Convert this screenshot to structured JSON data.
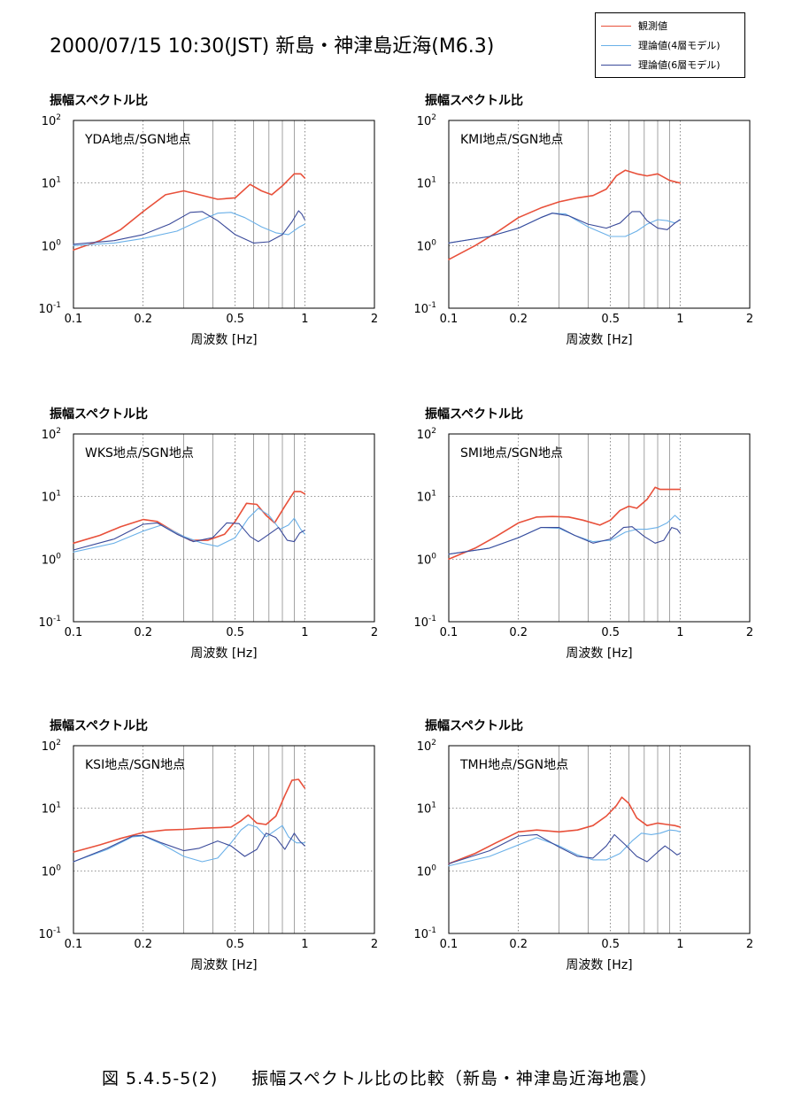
{
  "title": "2000/07/15  10:30(JST)  新島・神津島近海(M6.3)",
  "legend": [
    {
      "label": "観測値",
      "color": "#e8503a"
    },
    {
      "label": "理論値(4層モデル)",
      "color": "#6ab0e8"
    },
    {
      "label": "理論値(6層モデル)",
      "color": "#3a4a9a"
    }
  ],
  "caption": {
    "figure_no": "図 5.4.5-5(2)",
    "text": "振幅スペクトル比の比較（新島・神津島近海地震）"
  },
  "chart_data": [
    {
      "type": "line",
      "title": "振幅スペクトル比",
      "annotation": "YDA地点/SGN地点",
      "xlabel": "周波数 [Hz]",
      "xscale": "log",
      "yscale": "log",
      "xlim": [
        0.1,
        2
      ],
      "ylim": [
        0.1,
        100
      ],
      "xticks": [
        "0.1",
        "0.2",
        "0.5",
        "1",
        "2"
      ],
      "yticks": [
        "10-1",
        "100",
        "101",
        "102"
      ],
      "series": [
        {
          "name": "観測値",
          "x": [
            0.1,
            0.13,
            0.16,
            0.2,
            0.25,
            0.3,
            0.35,
            0.42,
            0.5,
            0.58,
            0.65,
            0.72,
            0.8,
            0.9,
            0.96,
            1.0
          ],
          "y": [
            0.85,
            1.2,
            1.8,
            3.5,
            6.5,
            7.5,
            6.5,
            5.5,
            5.8,
            9.5,
            7.5,
            6.5,
            9.0,
            14,
            14,
            12
          ]
        },
        {
          "name": "理論値(4層モデル)",
          "x": [
            0.1,
            0.15,
            0.2,
            0.28,
            0.35,
            0.42,
            0.48,
            0.55,
            0.65,
            0.75,
            0.85,
            0.95,
            1.0
          ],
          "y": [
            1.0,
            1.1,
            1.3,
            1.7,
            2.5,
            3.3,
            3.4,
            2.8,
            2.0,
            1.6,
            1.5,
            2.0,
            2.2
          ]
        },
        {
          "name": "理論値(6層モデル)",
          "x": [
            0.1,
            0.15,
            0.2,
            0.26,
            0.32,
            0.36,
            0.42,
            0.5,
            0.6,
            0.7,
            0.8,
            0.88,
            0.94,
            0.97,
            1.0
          ],
          "y": [
            1.05,
            1.2,
            1.5,
            2.2,
            3.4,
            3.5,
            2.5,
            1.5,
            1.1,
            1.15,
            1.5,
            2.4,
            3.6,
            3.2,
            2.6
          ]
        }
      ]
    },
    {
      "type": "line",
      "title": "振幅スペクトル比",
      "annotation": "KMI地点/SGN地点",
      "xlabel": "周波数 [Hz]",
      "xscale": "log",
      "yscale": "log",
      "xlim": [
        0.1,
        2
      ],
      "ylim": [
        0.1,
        100
      ],
      "xticks": [
        "0.1",
        "0.2",
        "0.5",
        "1",
        "2"
      ],
      "yticks": [
        "10-1",
        "100",
        "101",
        "102"
      ],
      "series": [
        {
          "name": "観測値",
          "x": [
            0.1,
            0.13,
            0.16,
            0.2,
            0.25,
            0.3,
            0.36,
            0.42,
            0.48,
            0.53,
            0.58,
            0.65,
            0.72,
            0.8,
            0.9,
            1.0
          ],
          "y": [
            0.6,
            1.0,
            1.6,
            2.8,
            4.0,
            5.0,
            5.8,
            6.3,
            8.0,
            13,
            16,
            14,
            13,
            14,
            11,
            10
          ]
        },
        {
          "name": "理論値(4層モデル)",
          "x": [
            0.1,
            0.15,
            0.2,
            0.25,
            0.28,
            0.32,
            0.4,
            0.5,
            0.58,
            0.65,
            0.72,
            0.8,
            0.88,
            0.95,
            1.0
          ],
          "y": [
            1.1,
            1.4,
            1.9,
            2.8,
            3.3,
            3.2,
            2.0,
            1.4,
            1.4,
            1.7,
            2.2,
            2.6,
            2.5,
            2.3,
            2.6
          ]
        },
        {
          "name": "理論値(6層モデル)",
          "x": [
            0.1,
            0.15,
            0.2,
            0.25,
            0.28,
            0.33,
            0.4,
            0.48,
            0.55,
            0.62,
            0.67,
            0.72,
            0.8,
            0.88,
            0.95,
            1.0
          ],
          "y": [
            1.1,
            1.4,
            1.9,
            2.8,
            3.3,
            3.0,
            2.2,
            1.9,
            2.3,
            3.5,
            3.5,
            2.5,
            1.9,
            1.8,
            2.3,
            2.6
          ]
        }
      ]
    },
    {
      "type": "line",
      "title": "振幅スペクトル比",
      "annotation": "WKS地点/SGN地点",
      "xlabel": "周波数 [Hz]",
      "xscale": "log",
      "yscale": "log",
      "xlim": [
        0.1,
        2
      ],
      "ylim": [
        0.1,
        100
      ],
      "xticks": [
        "0.1",
        "0.2",
        "0.5",
        "1",
        "2"
      ],
      "yticks": [
        "10-1",
        "100",
        "101",
        "102"
      ],
      "series": [
        {
          "name": "観測値",
          "x": [
            0.1,
            0.13,
            0.16,
            0.2,
            0.23,
            0.27,
            0.32,
            0.38,
            0.45,
            0.5,
            0.56,
            0.62,
            0.68,
            0.74,
            0.82,
            0.9,
            0.96,
            1.0
          ],
          "y": [
            1.8,
            2.4,
            3.3,
            4.3,
            4.0,
            2.8,
            2.0,
            2.0,
            2.5,
            4.0,
            7.8,
            7.5,
            5.0,
            3.8,
            7.0,
            12,
            12,
            11
          ]
        },
        {
          "name": "理論値(4層モデル)",
          "x": [
            0.1,
            0.15,
            0.2,
            0.24,
            0.3,
            0.36,
            0.42,
            0.5,
            0.57,
            0.63,
            0.7,
            0.78,
            0.85,
            0.9,
            0.96,
            1.0
          ],
          "y": [
            1.3,
            1.8,
            2.8,
            3.5,
            2.3,
            1.8,
            1.6,
            2.2,
            4.5,
            6.5,
            5.0,
            3.0,
            3.5,
            4.5,
            3.0,
            2.5
          ]
        },
        {
          "name": "理論値(6層モデル)",
          "x": [
            0.1,
            0.15,
            0.2,
            0.23,
            0.28,
            0.33,
            0.4,
            0.46,
            0.52,
            0.58,
            0.63,
            0.7,
            0.77,
            0.84,
            0.9,
            0.95,
            1.0
          ],
          "y": [
            1.4,
            2.1,
            3.6,
            3.8,
            2.5,
            1.9,
            2.2,
            3.8,
            3.7,
            2.3,
            1.9,
            2.5,
            3.2,
            2.0,
            1.9,
            2.6,
            2.9
          ]
        }
      ]
    },
    {
      "type": "line",
      "title": "振幅スペクトル比",
      "annotation": "SMI地点/SGN地点",
      "xlabel": "周波数 [Hz]",
      "xscale": "log",
      "yscale": "log",
      "xlim": [
        0.1,
        2
      ],
      "ylim": [
        0.1,
        100
      ],
      "xticks": [
        "0.1",
        "0.2",
        "0.5",
        "1",
        "2"
      ],
      "yticks": [
        "10-1",
        "100",
        "101",
        "102"
      ],
      "series": [
        {
          "name": "観測値",
          "x": [
            0.1,
            0.13,
            0.16,
            0.2,
            0.24,
            0.28,
            0.33,
            0.38,
            0.45,
            0.5,
            0.55,
            0.6,
            0.65,
            0.72,
            0.78,
            0.82,
            0.88,
            0.94,
            1.0
          ],
          "y": [
            1.0,
            1.5,
            2.3,
            3.8,
            4.7,
            4.8,
            4.7,
            4.2,
            3.5,
            4.2,
            6.0,
            7.0,
            6.5,
            9.0,
            14,
            13,
            13,
            13,
            13
          ]
        },
        {
          "name": "理論値(4層モデル)",
          "x": [
            0.1,
            0.15,
            0.2,
            0.25,
            0.3,
            0.35,
            0.42,
            0.5,
            0.58,
            0.65,
            0.72,
            0.8,
            0.88,
            0.95,
            1.0
          ],
          "y": [
            1.2,
            1.5,
            2.2,
            3.2,
            3.1,
            2.4,
            1.9,
            2.0,
            2.7,
            3.0,
            3.0,
            3.2,
            3.8,
            5.0,
            4.2
          ]
        },
        {
          "name": "理論値(6層モデル)",
          "x": [
            0.1,
            0.15,
            0.2,
            0.25,
            0.3,
            0.35,
            0.42,
            0.5,
            0.57,
            0.62,
            0.7,
            0.78,
            0.85,
            0.92,
            0.97,
            1.0
          ],
          "y": [
            1.2,
            1.5,
            2.2,
            3.2,
            3.2,
            2.4,
            1.8,
            2.1,
            3.2,
            3.3,
            2.3,
            1.8,
            2.0,
            3.2,
            3.0,
            2.6
          ]
        }
      ]
    },
    {
      "type": "line",
      "title": "振幅スペクトル比",
      "annotation": "KSI地点/SGN地点",
      "xlabel": "周波数 [Hz]",
      "xscale": "log",
      "yscale": "log",
      "xlim": [
        0.1,
        2
      ],
      "ylim": [
        0.1,
        100
      ],
      "xticks": [
        "0.1",
        "0.2",
        "0.5",
        "1",
        "2"
      ],
      "yticks": [
        "10-1",
        "100",
        "101",
        "102"
      ],
      "series": [
        {
          "name": "観測値",
          "x": [
            0.1,
            0.13,
            0.16,
            0.2,
            0.25,
            0.3,
            0.36,
            0.42,
            0.48,
            0.53,
            0.57,
            0.62,
            0.68,
            0.75,
            0.82,
            0.88,
            0.94,
            1.0
          ],
          "y": [
            2.0,
            2.6,
            3.3,
            4.1,
            4.5,
            4.6,
            4.8,
            4.9,
            5.0,
            6.3,
            7.8,
            5.8,
            5.5,
            7.5,
            16,
            28,
            29,
            21
          ]
        },
        {
          "name": "理論値(4層モデル)",
          "x": [
            0.1,
            0.14,
            0.18,
            0.2,
            0.24,
            0.3,
            0.36,
            0.42,
            0.48,
            0.53,
            0.57,
            0.62,
            0.68,
            0.75,
            0.8,
            0.85,
            0.92,
            1.0
          ],
          "y": [
            1.4,
            2.2,
            3.5,
            3.6,
            2.7,
            1.7,
            1.4,
            1.6,
            2.8,
            4.5,
            5.5,
            5.0,
            3.5,
            4.5,
            5.3,
            3.5,
            2.8,
            2.8
          ]
        },
        {
          "name": "理論値(6層モデル)",
          "x": [
            0.1,
            0.14,
            0.18,
            0.2,
            0.24,
            0.3,
            0.35,
            0.42,
            0.48,
            0.55,
            0.62,
            0.68,
            0.75,
            0.82,
            0.9,
            0.95,
            1.0
          ],
          "y": [
            1.4,
            2.3,
            3.6,
            3.7,
            2.8,
            2.1,
            2.3,
            3.0,
            2.5,
            1.7,
            2.2,
            4.0,
            3.4,
            2.2,
            4.0,
            3.0,
            2.5
          ]
        }
      ]
    },
    {
      "type": "line",
      "title": "振幅スペクトル比",
      "annotation": "TMH地点/SGN地点",
      "xlabel": "周波数 [Hz]",
      "xscale": "log",
      "yscale": "log",
      "xlim": [
        0.1,
        2
      ],
      "ylim": [
        0.1,
        100
      ],
      "xticks": [
        "0.1",
        "0.2",
        "0.5",
        "1",
        "2"
      ],
      "yticks": [
        "10-1",
        "100",
        "101",
        "102"
      ],
      "series": [
        {
          "name": "観測値",
          "x": [
            0.1,
            0.13,
            0.16,
            0.2,
            0.24,
            0.3,
            0.36,
            0.42,
            0.48,
            0.53,
            0.56,
            0.6,
            0.65,
            0.72,
            0.8,
            0.88,
            0.95,
            1.0
          ],
          "y": [
            1.3,
            1.9,
            2.8,
            4.2,
            4.5,
            4.2,
            4.5,
            5.3,
            7.5,
            11,
            15,
            12,
            7.0,
            5.3,
            5.8,
            5.5,
            5.3,
            5.0
          ]
        },
        {
          "name": "理論値(4層モデル)",
          "x": [
            0.1,
            0.15,
            0.2,
            0.24,
            0.3,
            0.36,
            0.42,
            0.48,
            0.55,
            0.62,
            0.68,
            0.75,
            0.82,
            0.9,
            0.96,
            1.0
          ],
          "y": [
            1.2,
            1.7,
            2.6,
            3.4,
            2.5,
            1.8,
            1.5,
            1.5,
            1.9,
            3.0,
            4.0,
            3.8,
            4.0,
            4.5,
            4.4,
            4.2
          ]
        },
        {
          "name": "理論値(6層モデル)",
          "x": [
            0.1,
            0.15,
            0.2,
            0.24,
            0.3,
            0.36,
            0.42,
            0.48,
            0.52,
            0.58,
            0.65,
            0.72,
            0.8,
            0.86,
            0.92,
            0.97,
            1.0
          ],
          "y": [
            1.3,
            2.1,
            3.6,
            3.8,
            2.4,
            1.7,
            1.6,
            2.5,
            3.8,
            2.6,
            1.7,
            1.4,
            2.0,
            2.5,
            2.1,
            1.8,
            1.9
          ]
        }
      ]
    }
  ]
}
